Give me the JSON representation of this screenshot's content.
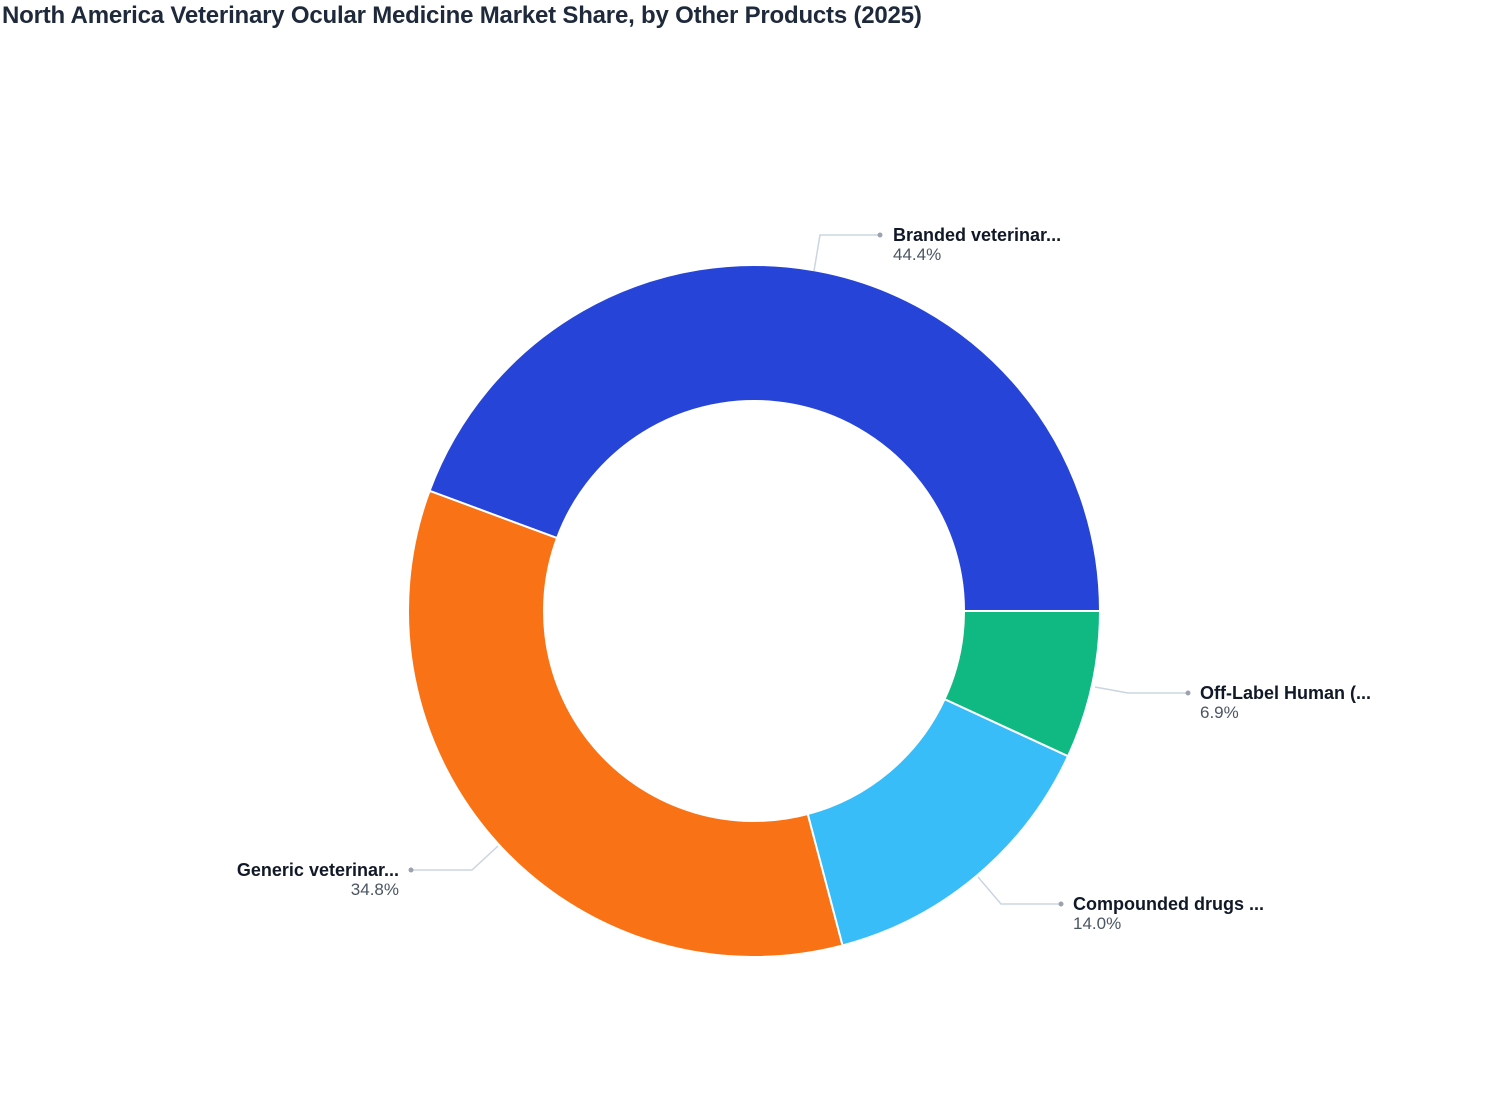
{
  "title": "North America Veterinary Ocular Medicine Market Share, by Other Products (2025)",
  "chart_data": {
    "type": "pie",
    "variant": "donut",
    "title": "North America Veterinary Ocular Medicine Market Share, by Other Products (2025)",
    "categories": [
      "Branded veterinar...",
      "Generic veterinar...",
      "Compounded drugs ...",
      "Off-Label Human (..."
    ],
    "values": [
      44.4,
      34.8,
      14.0,
      6.9
    ],
    "unit": "%",
    "colors": [
      "#2744d9",
      "#f97316",
      "#38bdf8",
      "#10b981"
    ],
    "labels": [
      {
        "name": "Branded veterinar...",
        "value": "44.4%"
      },
      {
        "name": "Generic veterinar...",
        "value": "34.8%"
      },
      {
        "name": "Compounded drugs ...",
        "value": "14.0%"
      },
      {
        "name": "Off-Label Human (...",
        "value": "6.9%"
      }
    ],
    "legend": "none",
    "grid": false
  }
}
